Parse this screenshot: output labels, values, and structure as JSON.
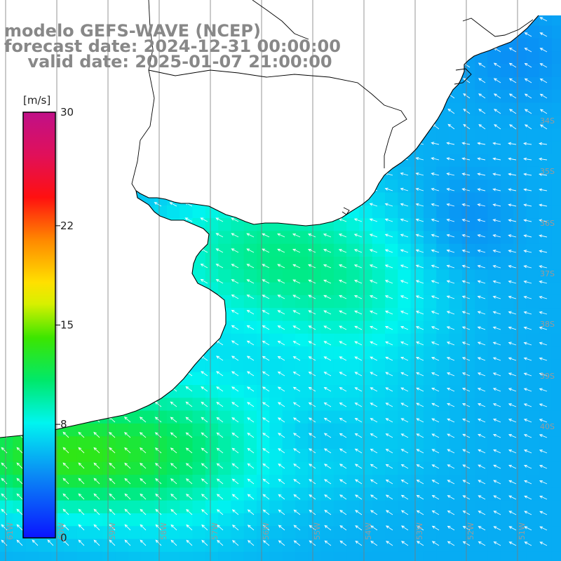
{
  "header": {
    "line1": "modelo GEFS-WAVE (NCEP)",
    "line2": "forecast date: 2024-12-31 00:00:00",
    "line3": "    valid date: 2025-01-07 21:00:00"
  },
  "colorbar": {
    "unit": "[m/s]",
    "ticks": [
      {
        "label": "30",
        "value": 30
      },
      {
        "label": "22",
        "value": 22
      },
      {
        "label": "15",
        "value": 15
      },
      {
        "label": "8",
        "value": 8
      },
      {
        "label": "0",
        "value": 0
      }
    ],
    "min": 0,
    "max": 30
  },
  "map": {
    "grid_color": "#7a7a7a",
    "coast_color": "#000000",
    "land_color": "#ffffff",
    "arrow_color": "#ffffff",
    "lat_labels": [
      "34S",
      "35S",
      "36S",
      "37S",
      "38S",
      "39S",
      "40S"
    ],
    "lon_labels": [
      "61W",
      "60W",
      "59W",
      "58W",
      "57W",
      "56W",
      "55W",
      "54W",
      "53W",
      "52W",
      "51W"
    ]
  }
}
